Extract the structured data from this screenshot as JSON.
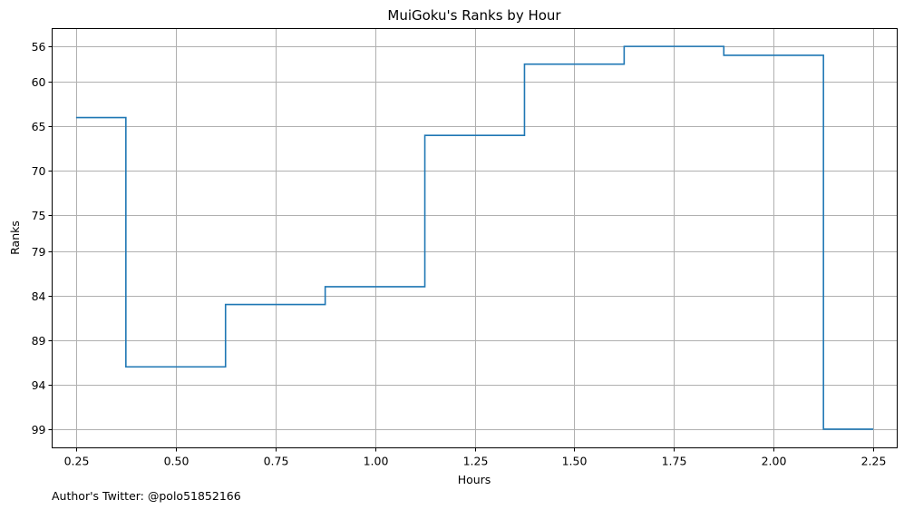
{
  "chart_data": {
    "type": "line",
    "drawstyle": "steps-mid",
    "title": "MuiGoku's Ranks by Hour",
    "xlabel": "Hours",
    "ylabel": "Ranks",
    "x": [
      0.25,
      0.5,
      0.75,
      1.0,
      1.25,
      1.5,
      1.75,
      2.0,
      2.25
    ],
    "series": [
      {
        "values": [
          64,
          92,
          85,
          83,
          66,
          58,
          56,
          57,
          99
        ],
        "color": "#1f77b4"
      }
    ],
    "xlim": [
      0.19,
      2.31
    ],
    "ylim": [
      101.1,
      54
    ],
    "y_inverted": true,
    "xticks": [
      0.25,
      0.5,
      0.75,
      1.0,
      1.25,
      1.5,
      1.75,
      2.0,
      2.25
    ],
    "xtick_labels": [
      "0.25",
      "0.50",
      "0.75",
      "1.00",
      "1.25",
      "1.50",
      "1.75",
      "2.00",
      "2.25"
    ],
    "yticks": [
      56,
      60,
      65,
      70,
      75,
      79,
      84,
      89,
      94,
      99
    ],
    "ytick_labels": [
      "56",
      "60",
      "65",
      "70",
      "75",
      "79",
      "84",
      "89",
      "94",
      "99"
    ],
    "grid": true,
    "legend": false
  },
  "footnote": "Author's Twitter: @polo51852166"
}
